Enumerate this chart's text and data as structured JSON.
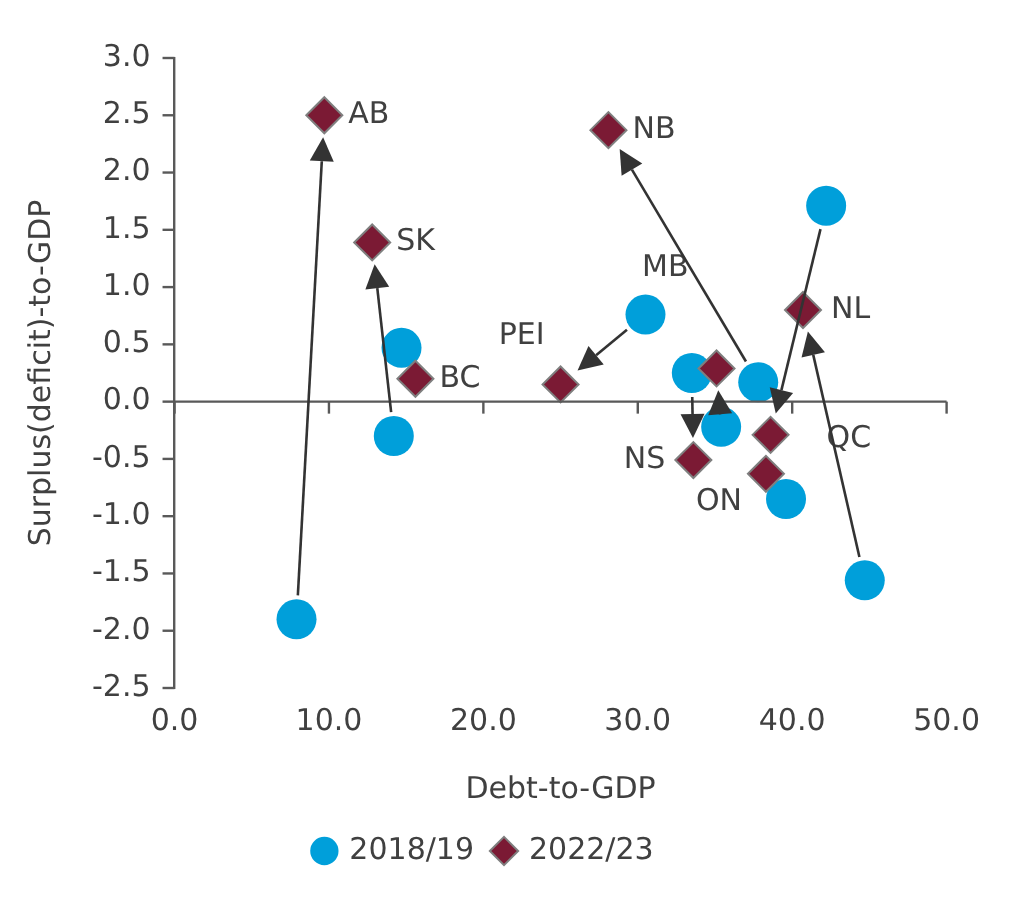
{
  "chart_data": {
    "type": "scatter",
    "xlabel": "Debt-to-GDP",
    "ylabel": "Surplus(deficit)-to-GDP",
    "xlim": [
      0,
      50
    ],
    "xticks": [
      {
        "value": 0,
        "label": "0.0"
      },
      {
        "value": 10,
        "label": "10.0"
      },
      {
        "value": 20,
        "label": "20.0"
      },
      {
        "value": 30,
        "label": "30.0"
      },
      {
        "value": 40,
        "label": "40.0"
      },
      {
        "value": 50,
        "label": "50.0"
      }
    ],
    "ylim": [
      -2.5,
      3
    ],
    "yticks": [
      {
        "value": -2.5,
        "label": "-2.5"
      },
      {
        "value": -2,
        "label": "-2.0"
      },
      {
        "value": -1.5,
        "label": "-1.5"
      },
      {
        "value": -1,
        "label": "-1.0"
      },
      {
        "value": -0.5,
        "label": "-0.5"
      },
      {
        "value": 0,
        "label": "0.0"
      },
      {
        "value": 0.5,
        "label": "0.5"
      },
      {
        "value": 1,
        "label": "1.0"
      },
      {
        "value": 1.5,
        "label": "1.5"
      },
      {
        "value": 2,
        "label": "2.0"
      },
      {
        "value": 2.5,
        "label": "2.5"
      },
      {
        "value": 3,
        "label": "3.0"
      }
    ],
    "grid": false,
    "legend": "bottom",
    "ref_lines": [
      {
        "axis": "y",
        "value": 0,
        "color": "#595959"
      }
    ],
    "series": [
      {
        "name": "2018/19",
        "color": "#009fda",
        "marker": "circle",
        "x": [
          7.9,
          14.2,
          14.7,
          30.5,
          37.8,
          35.4,
          33.5,
          42.2,
          39.6,
          44.7
        ],
        "values": [
          -1.9,
          -0.3,
          0.47,
          0.76,
          0.17,
          -0.22,
          0.25,
          1.71,
          -0.85,
          -1.56
        ]
      },
      {
        "name": "2022/23",
        "color": "#7b1a34",
        "marker": "diamond",
        "x": [
          9.7,
          12.8,
          15.6,
          25,
          28.1,
          35.1,
          33.6,
          38.6,
          38.3,
          40.7
        ],
        "values": [
          2.5,
          1.39,
          0.2,
          0.15,
          2.37,
          0.29,
          -0.51,
          -0.29,
          -0.63,
          0.8
        ]
      }
    ],
    "annotations": [
      {
        "text": "AB",
        "x": 9.7,
        "y": 2.5
      },
      {
        "text": "SK",
        "x": 12.8,
        "y": 1.39
      },
      {
        "text": "BC",
        "x": 15.6,
        "y": 0.2
      },
      {
        "text": "PEI",
        "x": 25,
        "y": 0.15
      },
      {
        "text": "NB",
        "x": 28.1,
        "y": 2.37
      },
      {
        "text": "MB",
        "x": 35.1,
        "y": 0.29
      },
      {
        "text": "NS",
        "x": 33.6,
        "y": -0.51
      },
      {
        "text": "QC",
        "x": 38.6,
        "y": -0.29
      },
      {
        "text": "ON",
        "x": 38.3,
        "y": -0.63
      },
      {
        "text": "NL",
        "x": 40.7,
        "y": 0.8
      }
    ]
  }
}
